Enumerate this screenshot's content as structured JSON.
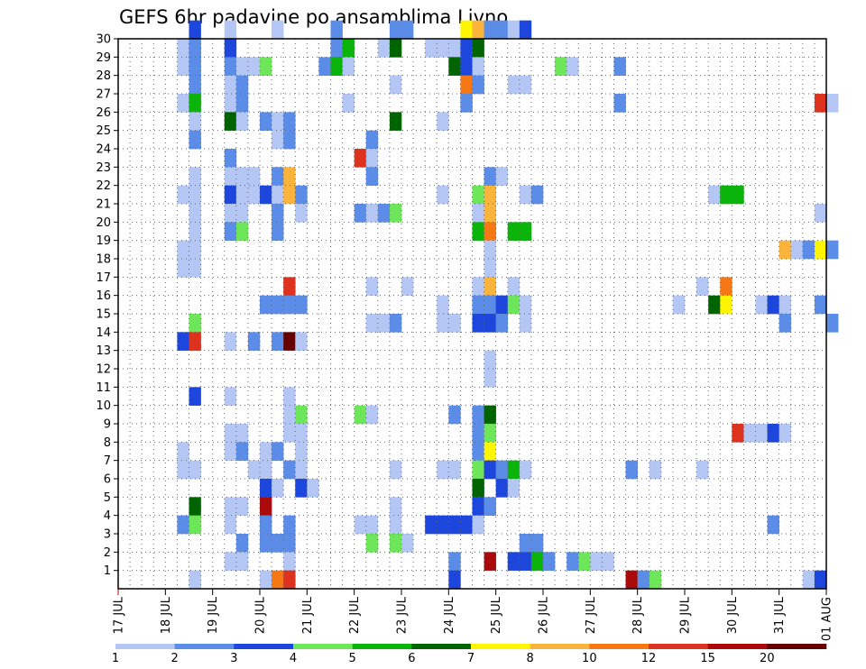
{
  "chart_data": {
    "type": "heatmap",
    "title": "GEFS 6hr padavine po ansamblima Livno",
    "x_ticks": [
      "17 JUL",
      "18 JUL",
      "19 JUL",
      "20 JUL",
      "21 JUL",
      "22 JUL",
      "23 JUL",
      "24 JUL",
      "25 JUL",
      "26 JUL",
      "27 JUL",
      "28 JUL",
      "29 JUL",
      "30 JUL",
      "31 JUL",
      "01 AUG"
    ],
    "y_ticks": [
      1,
      2,
      3,
      4,
      5,
      6,
      7,
      8,
      9,
      10,
      11,
      12,
      13,
      14,
      15,
      16,
      17,
      18,
      19,
      20,
      21,
      22,
      23,
      24,
      25,
      26,
      27,
      28,
      29,
      30
    ],
    "y_range": [
      0,
      30
    ],
    "time_steps_per_day": 4,
    "grid": "dotted",
    "colorbar": {
      "placement": "bottom",
      "levels": [
        1,
        2,
        3,
        4,
        5,
        6,
        7,
        8,
        10,
        12,
        15,
        20
      ],
      "level_labels": [
        "1",
        "2",
        "3",
        "4",
        "5",
        "6",
        "7",
        "8",
        "10",
        "12",
        "15",
        "20"
      ],
      "colors": [
        "#b4c7f4",
        "#5a8ce8",
        "#1c46dc",
        "#6ee65a",
        "#0ab40a",
        "#006400",
        "#fff500",
        "#fab43c",
        "#f57814",
        "#dc321e",
        "#aa0a0a",
        "#640000"
      ]
    },
    "cells": [
      [
        30,
        6,
        2
      ],
      [
        30,
        9,
        0
      ],
      [
        30,
        13,
        0
      ],
      [
        30,
        18,
        1
      ],
      [
        30,
        23,
        1
      ],
      [
        30,
        24,
        1
      ],
      [
        30,
        29,
        6
      ],
      [
        30,
        30,
        7
      ],
      [
        30,
        31,
        1
      ],
      [
        30,
        32,
        1
      ],
      [
        30,
        33,
        0
      ],
      [
        30,
        34,
        2
      ],
      [
        29,
        5,
        0
      ],
      [
        29,
        6,
        1
      ],
      [
        29,
        9,
        2
      ],
      [
        29,
        18,
        1
      ],
      [
        29,
        19,
        4
      ],
      [
        29,
        22,
        0
      ],
      [
        29,
        23,
        5
      ],
      [
        29,
        26,
        0
      ],
      [
        29,
        27,
        0
      ],
      [
        29,
        28,
        0
      ],
      [
        29,
        29,
        2
      ],
      [
        29,
        30,
        5
      ],
      [
        28,
        5,
        0
      ],
      [
        28,
        6,
        1
      ],
      [
        28,
        9,
        1
      ],
      [
        28,
        10,
        0
      ],
      [
        28,
        11,
        0
      ],
      [
        28,
        12,
        3
      ],
      [
        28,
        17,
        1
      ],
      [
        28,
        18,
        4
      ],
      [
        28,
        19,
        0
      ],
      [
        28,
        28,
        5
      ],
      [
        28,
        29,
        2
      ],
      [
        28,
        30,
        0
      ],
      [
        28,
        37,
        3
      ],
      [
        28,
        38,
        0
      ],
      [
        28,
        42,
        1
      ],
      [
        27,
        6,
        1
      ],
      [
        27,
        9,
        0
      ],
      [
        27,
        10,
        1
      ],
      [
        27,
        23,
        0
      ],
      [
        27,
        29,
        8
      ],
      [
        27,
        30,
        1
      ],
      [
        27,
        33,
        0
      ],
      [
        27,
        34,
        0
      ],
      [
        26,
        5,
        0
      ],
      [
        26,
        6,
        4
      ],
      [
        26,
        9,
        0
      ],
      [
        26,
        10,
        1
      ],
      [
        26,
        19,
        0
      ],
      [
        26,
        29,
        1
      ],
      [
        26,
        42,
        1
      ],
      [
        26,
        59,
        9
      ],
      [
        26,
        60,
        0
      ],
      [
        25,
        6,
        0
      ],
      [
        25,
        9,
        5
      ],
      [
        25,
        10,
        0
      ],
      [
        25,
        12,
        1
      ],
      [
        25,
        13,
        0
      ],
      [
        25,
        14,
        1
      ],
      [
        25,
        23,
        5
      ],
      [
        25,
        27,
        0
      ],
      [
        24,
        6,
        1
      ],
      [
        24,
        13,
        0
      ],
      [
        24,
        14,
        1
      ],
      [
        24,
        21,
        1
      ],
      [
        23,
        9,
        1
      ],
      [
        23,
        20,
        9
      ],
      [
        23,
        21,
        0
      ],
      [
        22,
        6,
        0
      ],
      [
        22,
        9,
        0
      ],
      [
        22,
        10,
        0
      ],
      [
        22,
        11,
        0
      ],
      [
        22,
        13,
        1
      ],
      [
        22,
        14,
        7
      ],
      [
        22,
        21,
        1
      ],
      [
        22,
        31,
        1
      ],
      [
        22,
        32,
        0
      ],
      [
        21,
        5,
        0
      ],
      [
        21,
        6,
        0
      ],
      [
        21,
        9,
        2
      ],
      [
        21,
        10,
        0
      ],
      [
        21,
        11,
        0
      ],
      [
        21,
        12,
        2
      ],
      [
        21,
        13,
        0
      ],
      [
        21,
        14,
        7
      ],
      [
        21,
        15,
        1
      ],
      [
        21,
        27,
        0
      ],
      [
        21,
        30,
        3
      ],
      [
        21,
        31,
        7
      ],
      [
        21,
        34,
        0
      ],
      [
        21,
        35,
        1
      ],
      [
        21,
        50,
        0
      ],
      [
        21,
        51,
        4
      ],
      [
        21,
        52,
        4
      ],
      [
        20,
        6,
        0
      ],
      [
        20,
        9,
        0
      ],
      [
        20,
        10,
        0
      ],
      [
        20,
        13,
        1
      ],
      [
        20,
        15,
        0
      ],
      [
        20,
        20,
        1
      ],
      [
        20,
        21,
        0
      ],
      [
        20,
        22,
        1
      ],
      [
        20,
        23,
        3
      ],
      [
        20,
        30,
        0
      ],
      [
        20,
        31,
        7
      ],
      [
        20,
        59,
        0
      ],
      [
        19,
        6,
        0
      ],
      [
        19,
        9,
        1
      ],
      [
        19,
        10,
        3
      ],
      [
        19,
        13,
        1
      ],
      [
        19,
        30,
        4
      ],
      [
        19,
        31,
        8
      ],
      [
        19,
        33,
        4
      ],
      [
        19,
        34,
        4
      ],
      [
        18,
        5,
        0
      ],
      [
        18,
        6,
        0
      ],
      [
        18,
        31,
        0
      ],
      [
        18,
        56,
        7
      ],
      [
        18,
        57,
        0
      ],
      [
        18,
        58,
        1
      ],
      [
        18,
        59,
        6
      ],
      [
        18,
        60,
        1
      ],
      [
        17,
        5,
        0
      ],
      [
        17,
        6,
        0
      ],
      [
        17,
        31,
        0
      ],
      [
        16,
        14,
        9
      ],
      [
        16,
        21,
        0
      ],
      [
        16,
        24,
        0
      ],
      [
        16,
        30,
        0
      ],
      [
        16,
        31,
        7
      ],
      [
        16,
        33,
        0
      ],
      [
        16,
        49,
        0
      ],
      [
        16,
        51,
        8
      ],
      [
        15,
        12,
        1
      ],
      [
        15,
        13,
        1
      ],
      [
        15,
        14,
        1
      ],
      [
        15,
        15,
        1
      ],
      [
        15,
        27,
        0
      ],
      [
        15,
        30,
        1
      ],
      [
        15,
        31,
        1
      ],
      [
        15,
        32,
        2
      ],
      [
        15,
        33,
        3
      ],
      [
        15,
        34,
        0
      ],
      [
        15,
        47,
        0
      ],
      [
        15,
        50,
        5
      ],
      [
        15,
        51,
        6
      ],
      [
        15,
        54,
        0
      ],
      [
        15,
        55,
        2
      ],
      [
        15,
        56,
        0
      ],
      [
        15,
        59,
        1
      ],
      [
        14,
        6,
        3
      ],
      [
        14,
        21,
        0
      ],
      [
        14,
        22,
        0
      ],
      [
        14,
        23,
        1
      ],
      [
        14,
        27,
        0
      ],
      [
        14,
        28,
        0
      ],
      [
        14,
        30,
        2
      ],
      [
        14,
        31,
        2
      ],
      [
        14,
        32,
        1
      ],
      [
        14,
        34,
        0
      ],
      [
        14,
        56,
        1
      ],
      [
        14,
        60,
        1
      ],
      [
        13,
        5,
        2
      ],
      [
        13,
        6,
        9
      ],
      [
        13,
        9,
        0
      ],
      [
        13,
        11,
        1
      ],
      [
        13,
        13,
        1
      ],
      [
        13,
        14,
        11
      ],
      [
        13,
        15,
        0
      ],
      [
        12,
        31,
        0
      ],
      [
        11,
        31,
        0
      ],
      [
        10,
        6,
        2
      ],
      [
        10,
        9,
        0
      ],
      [
        10,
        14,
        0
      ],
      [
        9,
        14,
        0
      ],
      [
        9,
        15,
        3
      ],
      [
        9,
        20,
        3
      ],
      [
        9,
        21,
        0
      ],
      [
        9,
        28,
        1
      ],
      [
        9,
        30,
        1
      ],
      [
        9,
        31,
        5
      ],
      [
        8,
        9,
        0
      ],
      [
        8,
        10,
        0
      ],
      [
        8,
        14,
        0
      ],
      [
        8,
        15,
        0
      ],
      [
        8,
        30,
        1
      ],
      [
        8,
        31,
        3
      ],
      [
        8,
        52,
        9
      ],
      [
        8,
        53,
        0
      ],
      [
        8,
        54,
        0
      ],
      [
        8,
        55,
        2
      ],
      [
        8,
        56,
        0
      ],
      [
        7,
        5,
        0
      ],
      [
        7,
        9,
        0
      ],
      [
        7,
        10,
        1
      ],
      [
        7,
        12,
        0
      ],
      [
        7,
        13,
        1
      ],
      [
        7,
        15,
        0
      ],
      [
        7,
        30,
        1
      ],
      [
        7,
        31,
        6
      ],
      [
        6,
        5,
        0
      ],
      [
        6,
        6,
        0
      ],
      [
        6,
        11,
        0
      ],
      [
        6,
        12,
        0
      ],
      [
        6,
        14,
        1
      ],
      [
        6,
        15,
        0
      ],
      [
        6,
        23,
        0
      ],
      [
        6,
        27,
        0
      ],
      [
        6,
        28,
        0
      ],
      [
        6,
        30,
        3
      ],
      [
        6,
        31,
        2
      ],
      [
        6,
        32,
        1
      ],
      [
        6,
        33,
        4
      ],
      [
        6,
        34,
        0
      ],
      [
        6,
        43,
        1
      ],
      [
        6,
        45,
        0
      ],
      [
        6,
        49,
        0
      ],
      [
        5,
        12,
        2
      ],
      [
        5,
        13,
        0
      ],
      [
        5,
        15,
        2
      ],
      [
        5,
        16,
        0
      ],
      [
        5,
        30,
        5
      ],
      [
        5,
        32,
        2
      ],
      [
        5,
        33,
        0
      ],
      [
        4,
        6,
        5
      ],
      [
        4,
        9,
        0
      ],
      [
        4,
        10,
        0
      ],
      [
        4,
        12,
        10
      ],
      [
        4,
        23,
        0
      ],
      [
        4,
        30,
        2
      ],
      [
        4,
        31,
        1
      ],
      [
        3,
        5,
        1
      ],
      [
        3,
        6,
        3
      ],
      [
        3,
        9,
        0
      ],
      [
        3,
        12,
        1
      ],
      [
        3,
        14,
        1
      ],
      [
        3,
        20,
        0
      ],
      [
        3,
        21,
        0
      ],
      [
        3,
        23,
        0
      ],
      [
        3,
        26,
        2
      ],
      [
        3,
        27,
        2
      ],
      [
        3,
        28,
        2
      ],
      [
        3,
        29,
        2
      ],
      [
        3,
        30,
        0
      ],
      [
        3,
        55,
        1
      ],
      [
        2,
        10,
        1
      ],
      [
        2,
        12,
        1
      ],
      [
        2,
        13,
        1
      ],
      [
        2,
        14,
        1
      ],
      [
        2,
        21,
        3
      ],
      [
        2,
        23,
        3
      ],
      [
        2,
        24,
        0
      ],
      [
        2,
        34,
        1
      ],
      [
        2,
        35,
        1
      ],
      [
        1,
        9,
        0
      ],
      [
        1,
        10,
        0
      ],
      [
        1,
        14,
        0
      ],
      [
        1,
        28,
        1
      ],
      [
        1,
        31,
        10
      ],
      [
        1,
        33,
        2
      ],
      [
        1,
        34,
        2
      ],
      [
        1,
        35,
        4
      ],
      [
        1,
        36,
        1
      ],
      [
        1,
        38,
        1
      ],
      [
        1,
        39,
        3
      ],
      [
        1,
        40,
        0
      ],
      [
        1,
        41,
        0
      ],
      [
        0,
        6,
        0
      ],
      [
        0,
        12,
        0
      ],
      [
        0,
        13,
        8
      ],
      [
        0,
        14,
        9
      ],
      [
        0,
        28,
        2
      ],
      [
        0,
        43,
        10
      ],
      [
        0,
        44,
        1
      ],
      [
        0,
        45,
        3
      ],
      [
        0,
        58,
        0
      ],
      [
        0,
        59,
        2
      ]
    ]
  }
}
